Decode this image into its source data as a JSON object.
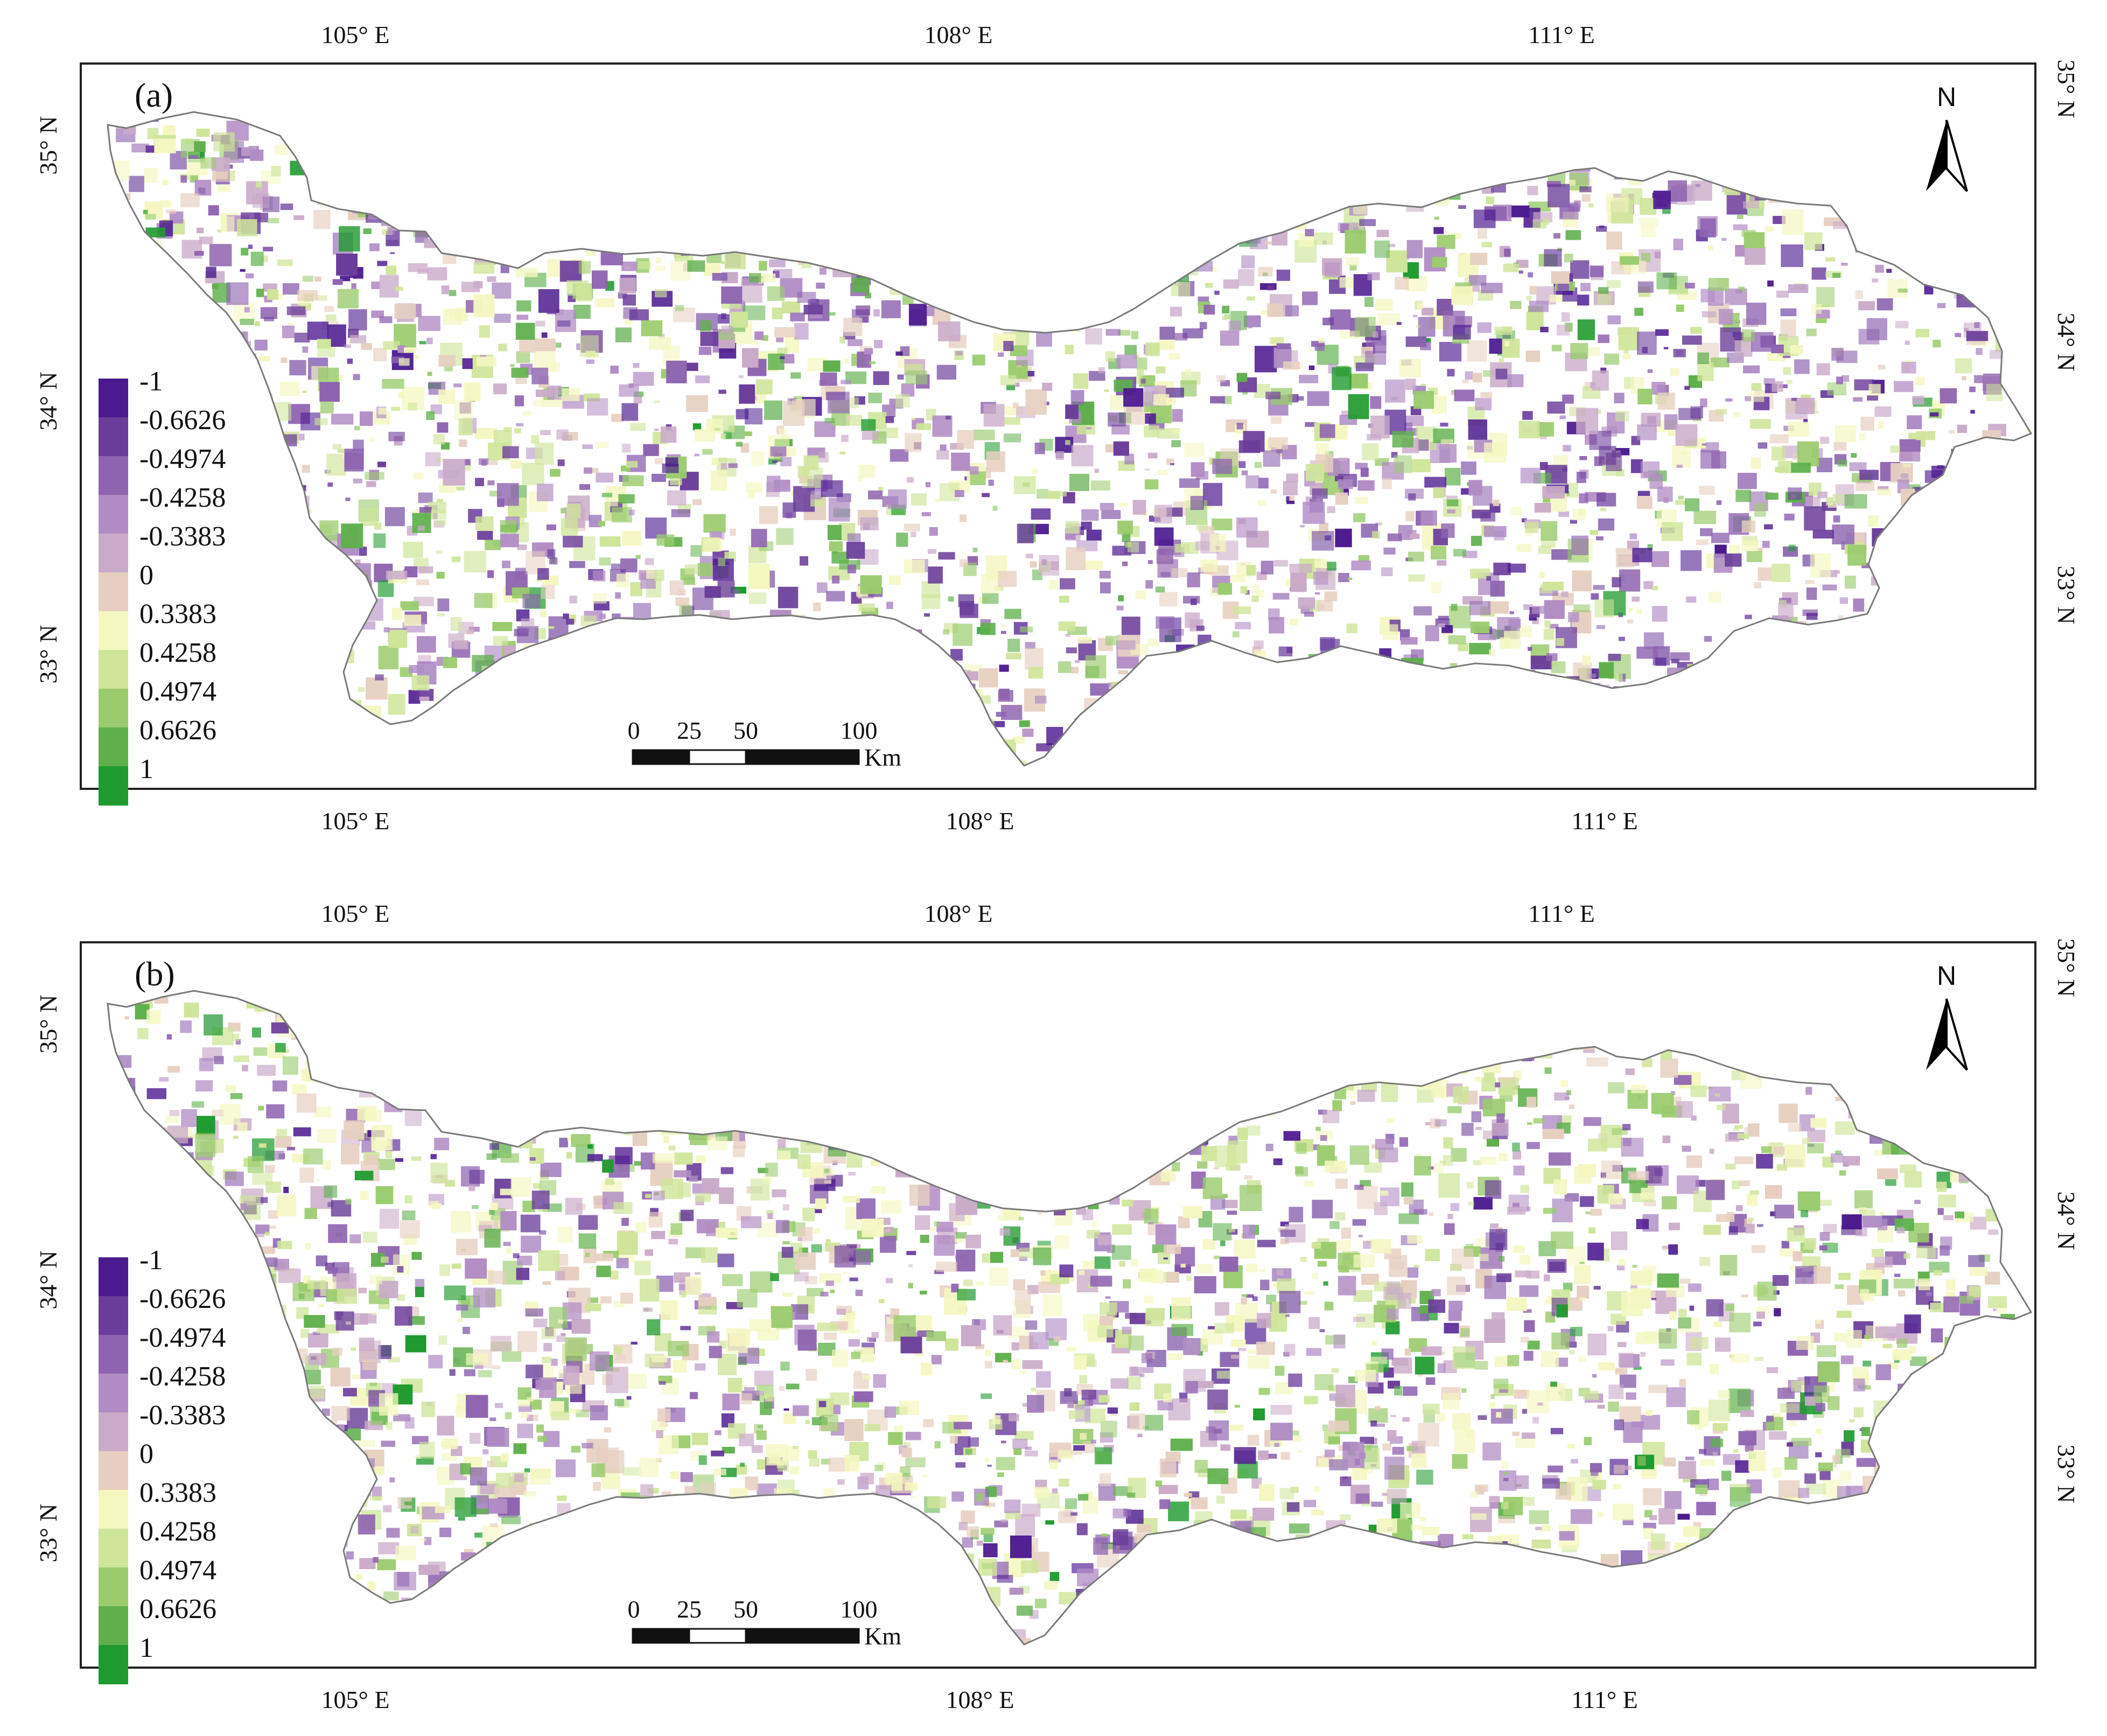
{
  "panels": [
    {
      "label": "(a)",
      "seed": 17,
      "top_ticks": [
        "105° E",
        "108° E",
        "111° E"
      ],
      "bottom_ticks": [
        "105° E",
        "108° E",
        "111° E"
      ],
      "left_ticks": [
        "35° N",
        "34° N",
        "33° N"
      ],
      "right_ticks": [
        "35° N",
        "34° N",
        "33° N"
      ],
      "north_label": "N",
      "scalebar": {
        "labels": [
          "0",
          "25",
          "50",
          "100"
        ],
        "unit": "Km"
      }
    },
    {
      "label": "(b)",
      "seed": 91,
      "top_ticks": [
        "105° E",
        "108° E",
        "111° E"
      ],
      "bottom_ticks": [
        "105° E",
        "108° E",
        "111° E"
      ],
      "left_ticks": [
        "35° N",
        "34° N",
        "33° N"
      ],
      "right_ticks": [
        "35° N",
        "34° N",
        "33° N"
      ],
      "north_label": "N",
      "scalebar": {
        "labels": [
          "0",
          "25",
          "50",
          "100"
        ],
        "unit": "Km"
      }
    }
  ],
  "legend": {
    "labels": [
      "-1",
      "-0.6626",
      "-0.4974",
      "-0.4258",
      "-0.3383",
      "0",
      "0.3383",
      "0.4258",
      "0.4974",
      "0.6626",
      "1"
    ],
    "colors": [
      "#4b1a8f",
      "#6a3d9a",
      "#8e64b0",
      "#b08cc4",
      "#c9aac8",
      "#e6cfc0",
      "#f4f7c0",
      "#cfe59a",
      "#9acb6d",
      "#5fb04c",
      "#1f9a2e"
    ]
  },
  "colors": {
    "frame": "#222222",
    "outline": "#7a7a7a",
    "scalebar_fill": "#111111",
    "scalebar_blank": "#ffffff"
  }
}
